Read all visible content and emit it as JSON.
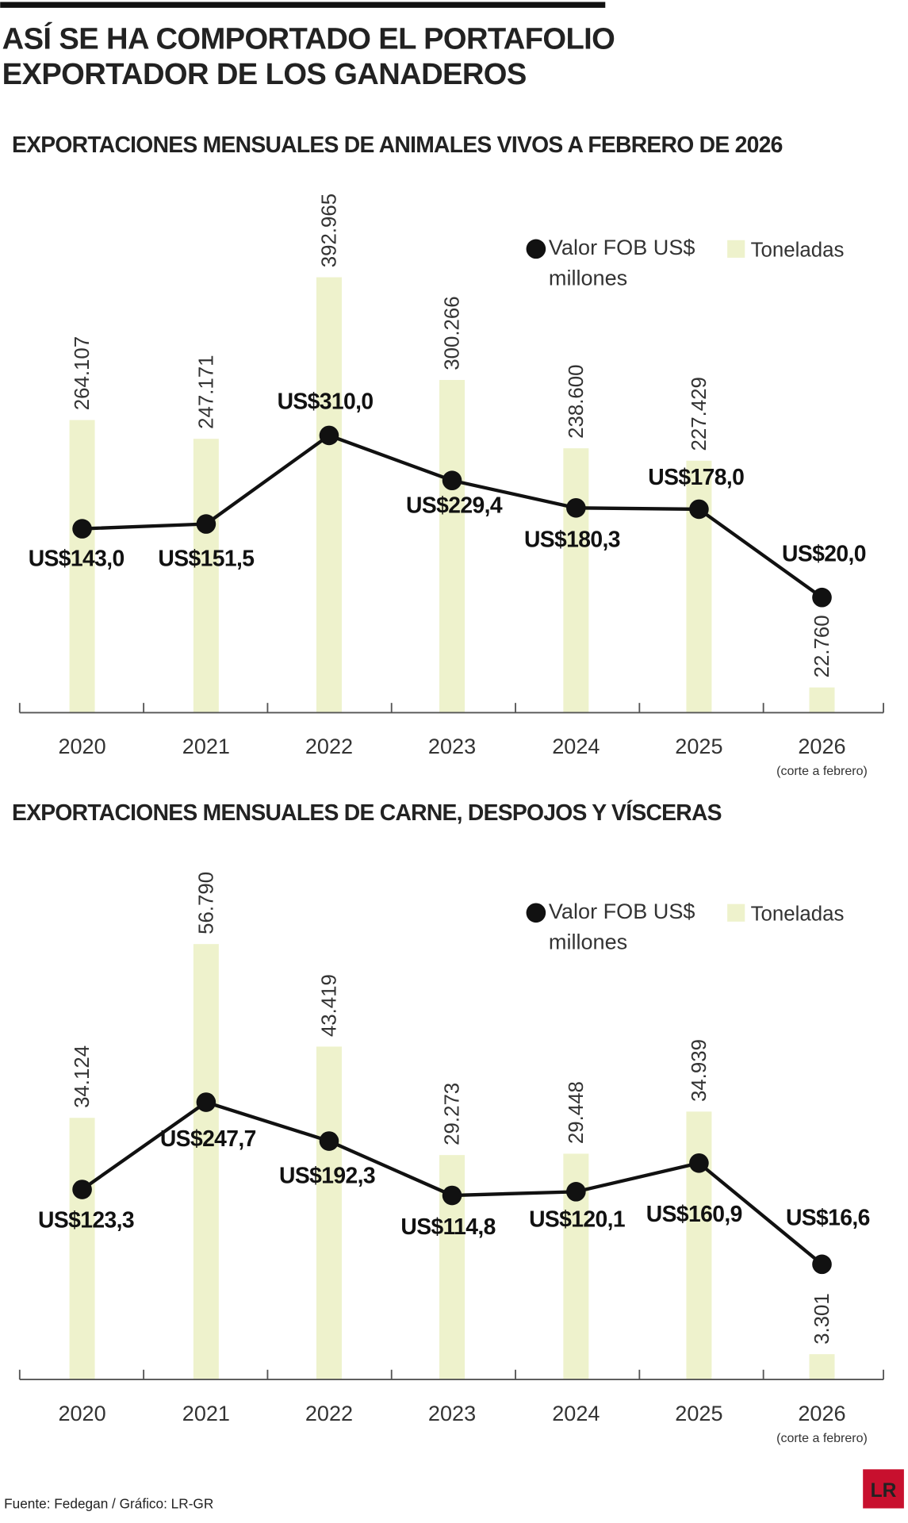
{
  "title": "ASÍ SE HA COMPORTADO EL PORTAFOLIO EXPORTADOR DE LOS GANADEROS",
  "source": "Fuente: Fedegan / Gráfico: LR-GR",
  "logo": "LR",
  "chart_data": [
    {
      "type": "combo",
      "title": "EXPORTACIONES MENSUALES DE ANIMALES VIVOS A FEBRERO DE 2026",
      "categories": [
        "2020",
        "2021",
        "2022",
        "2023",
        "2024",
        "2025",
        "2026"
      ],
      "note": "(corte a febrero)",
      "series": [
        {
          "name": "Toneladas",
          "type": "bar",
          "color": "#eef2cc",
          "values": [
            264107,
            247171,
            392965,
            300266,
            238600,
            227429,
            22760
          ],
          "value_labels": [
            "264.107",
            "247.171",
            "392.965",
            "300.266",
            "238.600",
            "227.429",
            "22.760"
          ]
        },
        {
          "name": "Valor FOB US$ millones",
          "type": "line",
          "axis": "y2",
          "color": "#111111",
          "values": [
            143.0,
            151.5,
            310.0,
            229.4,
            180.3,
            178.0,
            20.0
          ],
          "value_labels": [
            "US$143,0",
            "US$151,5",
            "US$310,0",
            "US$229,4",
            "US$180,3",
            "US$178,0",
            "US$20,0"
          ]
        }
      ]
    },
    {
      "type": "combo",
      "title": "EXPORTACIONES MENSUALES DE CARNE, DESPOJOS Y VÍSCERAS",
      "categories": [
        "2020",
        "2021",
        "2022",
        "2023",
        "2024",
        "2025",
        "2026"
      ],
      "note": "(corte a febrero)",
      "series": [
        {
          "name": "Toneladas",
          "type": "bar",
          "color": "#eef2cc",
          "values": [
            34124,
            56790,
            43419,
            29273,
            29448,
            34939,
            3301
          ],
          "value_labels": [
            "34.124",
            "56.790",
            "43.419",
            "29.273",
            "29.448",
            "34.939",
            "3.301"
          ]
        },
        {
          "name": "Valor FOB US$ millones",
          "type": "line",
          "axis": "y2",
          "color": "#111111",
          "values": [
            123.3,
            247.7,
            192.3,
            114.8,
            120.1,
            160.9,
            16.6
          ],
          "value_labels": [
            "US$123,3",
            "US$247,7",
            "US$192,3",
            "US$114,8",
            "US$120,1",
            "US$160,9",
            "US$16,6"
          ]
        }
      ]
    }
  ]
}
